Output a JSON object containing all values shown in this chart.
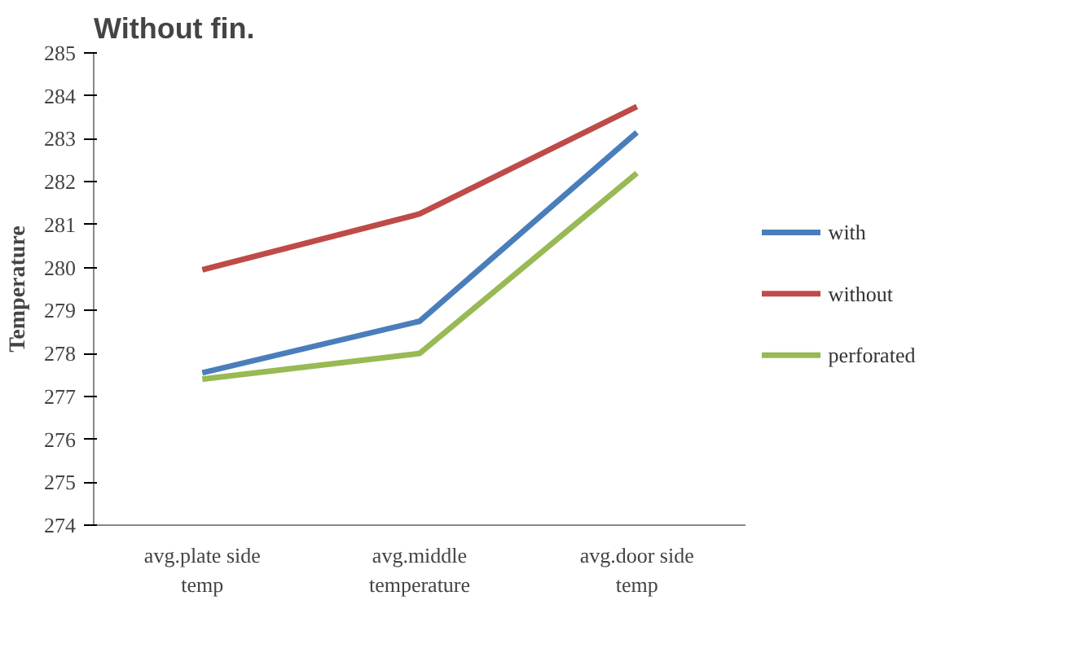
{
  "chart_data": {
    "type": "line",
    "title": "Without fin.",
    "ylabel": "Temperature",
    "categories": [
      "avg.plate side\ntemp",
      "avg.middle\ntemperature",
      "avg.door side\ntemp"
    ],
    "series": [
      {
        "name": "with",
        "color": "#4a7ebb",
        "values": [
          277.55,
          278.75,
          283.15
        ]
      },
      {
        "name": "without",
        "color": "#be4b48",
        "values": [
          279.95,
          281.25,
          283.75
        ]
      },
      {
        "name": "perforated",
        "color": "#98b954",
        "values": [
          277.4,
          278.0,
          282.2
        ]
      }
    ],
    "ylim": [
      274,
      285
    ],
    "yticks": [
      274,
      275,
      276,
      277,
      278,
      279,
      280,
      281,
      282,
      283,
      284,
      285
    ],
    "grid": false,
    "legend": "right",
    "marker": "none"
  }
}
